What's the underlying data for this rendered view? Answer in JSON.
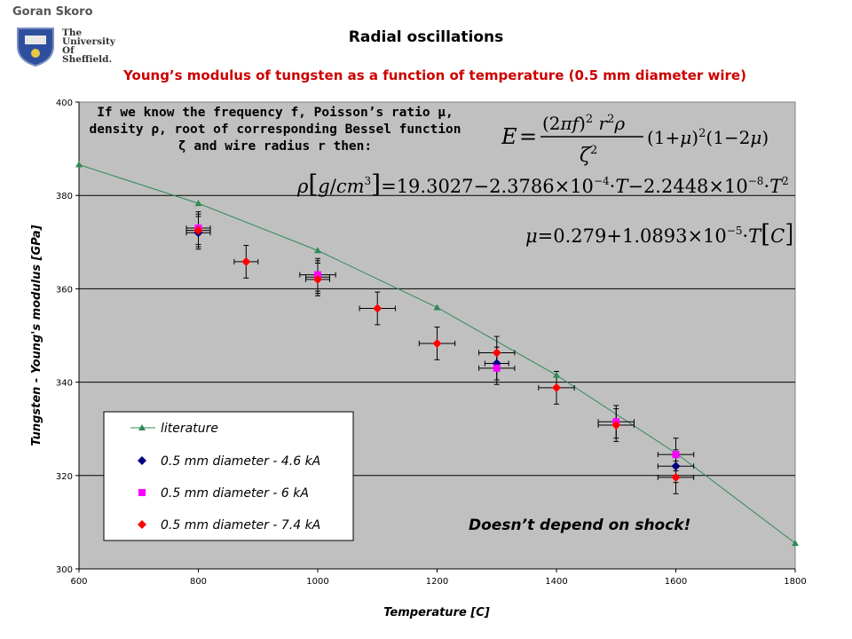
{
  "header": {
    "author": "Goran Skoro",
    "institution_lines": [
      "The",
      "University",
      "Of",
      "Sheffield."
    ],
    "title": "Radial oscillations",
    "subtitle": "Young’s modulus of tungsten as a function of temperature (0.5 mm diameter wire)"
  },
  "annotation": {
    "text": "If we know the frequency f, Poisson’s ratio μ, density ρ, root of corresponding Bessel function ζ and wire radius r then:",
    "conclusion": "Doesn’t depend on shock!"
  },
  "equations": {
    "young": "E = ((2πf)² r² ρ / ζ²) (1+μ)² (1−2μ)",
    "density": "ρ[g/cm³] = 19.3027 − 2.3786×10⁻⁴·T − 2.2448×10⁻⁸·T²",
    "poisson": "μ = 0.279 + 1.0893×10⁻⁵·T[C]"
  },
  "colors": {
    "plot_bg": "#c0c0c0",
    "literature": "#2e8b57",
    "series_4_6": "#000080",
    "series_6": "#ff00ff",
    "series_7_4": "#ff0000",
    "subtitle": "#cc0000"
  },
  "chart_data": {
    "type": "scatter",
    "xlabel": "Temperature [C]",
    "ylabel": "Tungsten - Young's modulus [GPa]",
    "xlim": [
      600,
      1800
    ],
    "ylim": [
      300,
      400
    ],
    "xticks": [
      "600",
      "800",
      "1000",
      "1200",
      "1400",
      "1600",
      "1800"
    ],
    "yticks": [
      "300",
      "320",
      "340",
      "360",
      "380",
      "400"
    ],
    "grid": "horizontal",
    "legend_position": "bottom-left",
    "series": [
      {
        "name": "literature",
        "marker": "triangle",
        "line": true,
        "x": [
          600,
          800,
          1000,
          1200,
          1400,
          1600,
          1800
        ],
        "y": [
          386.6,
          378.3,
          368.2,
          356.0,
          341.5,
          324.8,
          305.5
        ]
      },
      {
        "name": "0.5 mm diameter - 4.6 kA",
        "marker": "diamond",
        "x": [
          800,
          1000,
          1300,
          1600
        ],
        "y": [
          372.0,
          362.5,
          344.0,
          322.0
        ],
        "xerr": [
          20,
          20,
          20,
          30
        ],
        "yerr": [
          3.5,
          3.5,
          3.5,
          3.5
        ]
      },
      {
        "name": "0.5 mm diameter - 6 kA",
        "marker": "square",
        "x": [
          800,
          1000,
          1300,
          1500,
          1600
        ],
        "y": [
          373.0,
          363.0,
          343.0,
          331.5,
          324.5
        ],
        "xerr": [
          20,
          30,
          30,
          30,
          30
        ],
        "yerr": [
          3.5,
          3.5,
          3.5,
          3.5,
          3.5
        ]
      },
      {
        "name": "0.5 mm diameter - 7.4 kA",
        "marker": "diamond",
        "x": [
          800,
          880,
          1000,
          1100,
          1200,
          1300,
          1400,
          1500,
          1600
        ],
        "y": [
          372.5,
          365.8,
          362.0,
          355.8,
          348.3,
          346.3,
          338.8,
          330.8,
          319.6
        ],
        "xerr": [
          20,
          20,
          20,
          30,
          30,
          30,
          30,
          30,
          30
        ],
        "yerr": [
          3.5,
          3.5,
          3.5,
          3.5,
          3.5,
          3.5,
          3.5,
          3.5,
          3.5
        ]
      }
    ]
  }
}
